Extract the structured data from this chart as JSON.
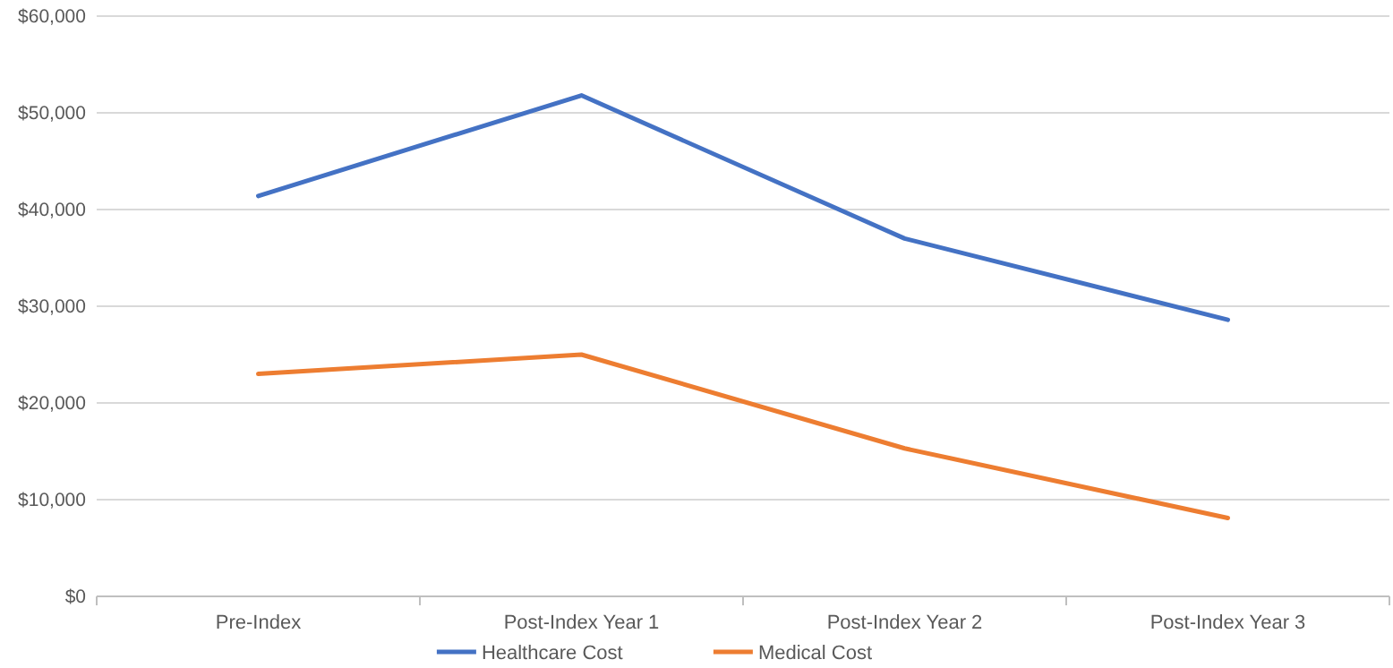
{
  "chart_data": {
    "type": "line",
    "categories": [
      "Pre-Index",
      "Post-Index Year 1",
      "Post-Index Year 2",
      "Post-Index Year 3"
    ],
    "series": [
      {
        "name": "Healthcare Cost",
        "color": "#4472c4",
        "values": [
          41400,
          51800,
          37000,
          28600
        ]
      },
      {
        "name": "Medical Cost",
        "color": "#ed7d31",
        "values": [
          23000,
          25000,
          15300,
          8100
        ]
      }
    ],
    "ylim": [
      0,
      60000
    ],
    "yticks": [
      {
        "value": 0,
        "label": "$0"
      },
      {
        "value": 10000,
        "label": "$10,000"
      },
      {
        "value": 20000,
        "label": "$20,000"
      },
      {
        "value": 30000,
        "label": "$30,000"
      },
      {
        "value": 40000,
        "label": "$40,000"
      },
      {
        "value": 50000,
        "label": "$50,000"
      },
      {
        "value": 60000,
        "label": "$60,000"
      }
    ],
    "grid": "y",
    "legend": "bottom",
    "marker": "none",
    "line_style": "solid"
  }
}
